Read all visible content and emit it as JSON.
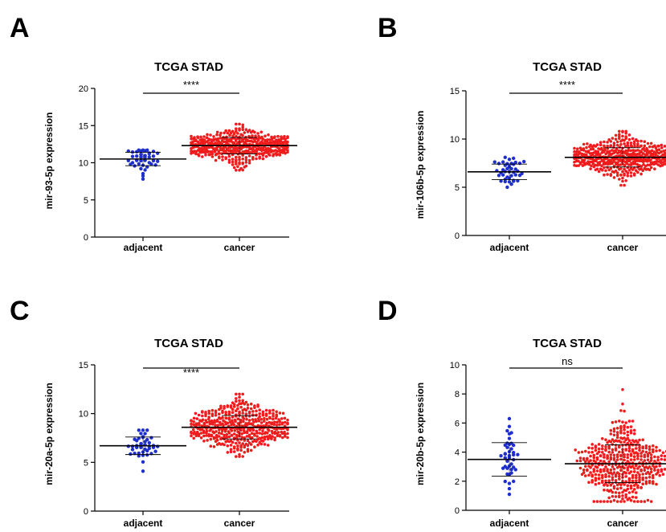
{
  "figure": {
    "panels": [
      {
        "letter": "A",
        "title": "TCGA STAD",
        "ylabel": "mir-93-5p expression",
        "significance": "****"
      },
      {
        "letter": "B",
        "title": "TCGA STAD",
        "ylabel": "mir-106b-5p expression",
        "significance": "****"
      },
      {
        "letter": "C",
        "title": "TCGA STAD",
        "ylabel": "mir-20a-5p expression",
        "significance": "****"
      },
      {
        "letter": "D",
        "title": "TCGA STAD",
        "ylabel": "mir-20b-5p expression",
        "significance": "ns"
      }
    ]
  },
  "colors": {
    "adjacent": "#1f2fcc",
    "cancer": "#ee1c1c",
    "axis": "#000000"
  },
  "chart_data": [
    {
      "type": "scatter",
      "title": "TCGA STAD",
      "ylabel": "mir-93-5p expression",
      "categories": [
        "adjacent",
        "cancer"
      ],
      "ylim": [
        0,
        20
      ],
      "yticks": [
        0,
        5,
        10,
        15,
        20
      ],
      "significance": "****",
      "series": [
        {
          "name": "adjacent",
          "n": 41,
          "mean": 10.5,
          "sd": 0.9,
          "min": 7.8,
          "max": 11.7
        },
        {
          "name": "cancer",
          "n": 446,
          "mean": 12.3,
          "sd": 1.1,
          "min": 9.0,
          "max": 15.2
        }
      ]
    },
    {
      "type": "scatter",
      "title": "TCGA STAD",
      "ylabel": "mir-106b-5p expression",
      "categories": [
        "adjacent",
        "cancer"
      ],
      "ylim": [
        0,
        15
      ],
      "yticks": [
        0,
        5,
        10,
        15
      ],
      "significance": "****",
      "series": [
        {
          "name": "adjacent",
          "n": 41,
          "mean": 6.6,
          "sd": 0.8,
          "min": 5.0,
          "max": 8.1
        },
        {
          "name": "cancer",
          "n": 446,
          "mean": 8.1,
          "sd": 1.0,
          "min": 5.2,
          "max": 10.8
        }
      ]
    },
    {
      "type": "scatter",
      "title": "TCGA STAD",
      "ylabel": "mir-20a-5p expression",
      "categories": [
        "adjacent",
        "cancer"
      ],
      "ylim": [
        0,
        15
      ],
      "yticks": [
        0,
        5,
        10,
        15
      ],
      "significance": "****",
      "series": [
        {
          "name": "adjacent",
          "n": 41,
          "mean": 6.7,
          "sd": 0.9,
          "min": 4.1,
          "max": 8.3
        },
        {
          "name": "cancer",
          "n": 446,
          "mean": 8.6,
          "sd": 1.2,
          "min": 5.6,
          "max": 12.0
        }
      ]
    },
    {
      "type": "scatter",
      "title": "TCGA STAD",
      "ylabel": "mir-20b-5p expression",
      "categories": [
        "adjacent",
        "cancer"
      ],
      "ylim": [
        0,
        10
      ],
      "yticks": [
        0,
        2,
        4,
        6,
        8,
        10
      ],
      "significance": "ns",
      "series": [
        {
          "name": "adjacent",
          "n": 41,
          "mean": 3.5,
          "sd": 1.15,
          "min": 1.1,
          "max": 6.3
        },
        {
          "name": "cancer",
          "n": 446,
          "mean": 3.2,
          "sd": 1.3,
          "min": 0.6,
          "max": 8.3
        }
      ]
    }
  ]
}
